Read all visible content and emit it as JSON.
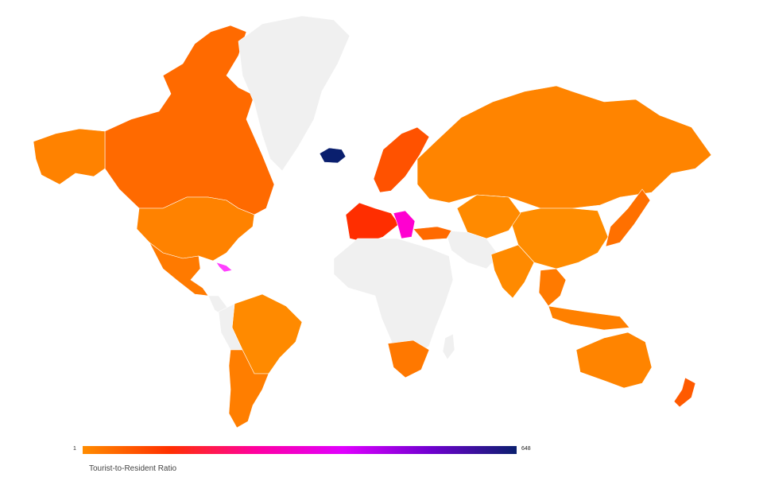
{
  "map": {
    "projection": "mercator",
    "no_data_color": "#f0f0f0",
    "border_color": "#ffffff",
    "regions": [
      {
        "name": "Canada",
        "color": "#ff6a00"
      },
      {
        "name": "Greenland",
        "color": "#f0f0f0"
      },
      {
        "name": "Iceland",
        "color": "#0a1f6e"
      },
      {
        "name": "United States",
        "color": "#ff8200"
      },
      {
        "name": "Alaska",
        "color": "#ff8200"
      },
      {
        "name": "Mexico",
        "color": "#ff7a00"
      },
      {
        "name": "Central America",
        "color": "#f0f0f0"
      },
      {
        "name": "Brazil",
        "color": "#ff8a00"
      },
      {
        "name": "Northern South America",
        "color": "#f0f0f0"
      },
      {
        "name": "Argentina",
        "color": "#ff7e00"
      },
      {
        "name": "Western Europe",
        "color": "#ff2e00"
      },
      {
        "name": "Scandinavia",
        "color": "#ff5200"
      },
      {
        "name": "Russia",
        "color": "#ff8400"
      },
      {
        "name": "China",
        "color": "#ff8c00"
      },
      {
        "name": "Mongolia / Central Asia",
        "color": "#ff8a00"
      },
      {
        "name": "Middle East / Central Asia",
        "color": "#f0f0f0"
      },
      {
        "name": "India",
        "color": "#ff8a00"
      },
      {
        "name": "Southeast Asia",
        "color": "#ff7a00"
      },
      {
        "name": "Indonesia",
        "color": "#ff8000"
      },
      {
        "name": "Japan",
        "color": "#ff7000"
      },
      {
        "name": "Africa",
        "color": "#f0f0f0"
      },
      {
        "name": "South Africa",
        "color": "#ff7800"
      },
      {
        "name": "Madagascar",
        "color": "#f0f0f0"
      },
      {
        "name": "Australia",
        "color": "#ff8400"
      },
      {
        "name": "New Zealand",
        "color": "#ff5a00"
      },
      {
        "name": "Turkey",
        "color": "#ff6a00"
      },
      {
        "name": "Greece / Balkans",
        "color": "#ff00d0"
      },
      {
        "name": "Caribbean",
        "color": "#ff40ff"
      }
    ]
  },
  "legend": {
    "min_label": "1",
    "max_label": "648",
    "title": "Tourist-to-Resident Ratio",
    "gradient": [
      "#ff8c00",
      "#ff3000",
      "#ff00a0",
      "#e000ff",
      "#7000d0",
      "#0a1f6e"
    ]
  }
}
